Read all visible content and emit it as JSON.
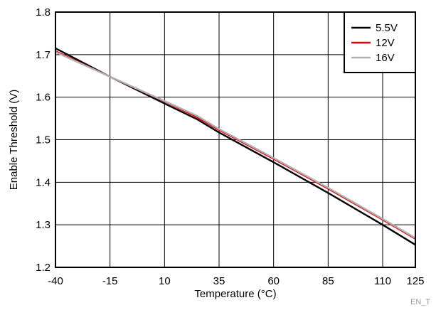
{
  "chart_data": {
    "type": "line",
    "xlabel": "Temperature (°C)",
    "ylabel": "Enable Threshold (V)",
    "xlim": [
      -40,
      125
    ],
    "ylim": [
      1.2,
      1.8
    ],
    "x_ticks": [
      -40,
      -15,
      10,
      35,
      60,
      85,
      110,
      125
    ],
    "y_ticks": [
      "1.2",
      "1.3",
      "1.4",
      "1.5",
      "1.6",
      "1.7",
      "1.8"
    ],
    "grid": true,
    "legend_position": "top-right",
    "series": [
      {
        "name": "5.5V",
        "color": "#000000",
        "points": [
          [
            -40,
            1.715
          ],
          [
            -15,
            1.648
          ],
          [
            10,
            1.585
          ],
          [
            25,
            1.548
          ],
          [
            35,
            1.517
          ],
          [
            60,
            1.447
          ],
          [
            85,
            1.375
          ],
          [
            110,
            1.3
          ],
          [
            125,
            1.253
          ]
        ]
      },
      {
        "name": "12V",
        "color": "#e8000b",
        "points": [
          [
            -40,
            1.708
          ],
          [
            -15,
            1.648
          ],
          [
            10,
            1.59
          ],
          [
            25,
            1.553
          ],
          [
            35,
            1.523
          ],
          [
            60,
            1.455
          ],
          [
            85,
            1.385
          ],
          [
            110,
            1.312
          ],
          [
            125,
            1.267
          ]
        ]
      },
      {
        "name": "16V",
        "color": "#b0b0b0",
        "points": [
          [
            -40,
            1.706
          ],
          [
            -15,
            1.648
          ],
          [
            10,
            1.591
          ],
          [
            25,
            1.556
          ],
          [
            35,
            1.525
          ],
          [
            60,
            1.457
          ],
          [
            85,
            1.387
          ],
          [
            110,
            1.314
          ],
          [
            125,
            1.269
          ]
        ]
      }
    ]
  },
  "figure_code": "EN_T"
}
